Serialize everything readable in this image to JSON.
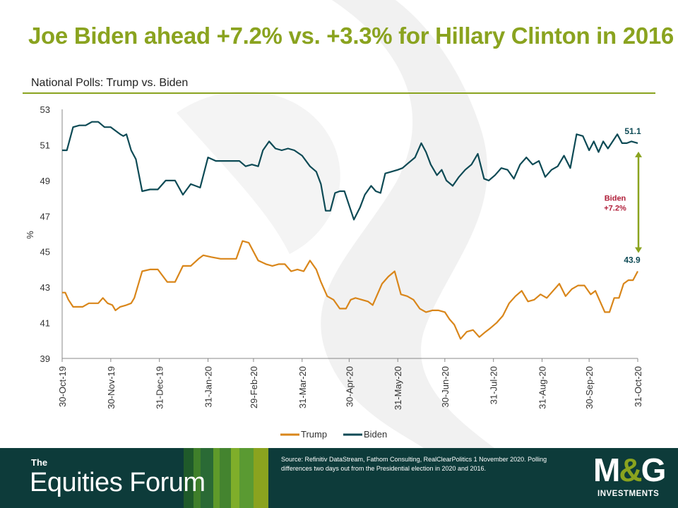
{
  "title": "Joe Biden ahead +7.2% vs. +3.3% for Hillary Clinton in 2016",
  "subtitle": "National Polls: Trump vs. Biden",
  "footer": {
    "brand_small": "The",
    "brand_big": "Equities Forum",
    "source": "Source: Refinitiv DataStream, Fathom Consulting, RealClearPolitics 1 November 2020. Polling differences two days out from the Presidential election in 2020 and 2016.",
    "logo_main_left": "M",
    "logo_amp": "&",
    "logo_main_right": "G",
    "logo_sub": "INVESTMENTS",
    "stripe_colors": [
      "#1f5a2a",
      "#3f7f2a",
      "#2a6a35",
      "#5f9a2a",
      "#44842f",
      "#7fae2a",
      "#5a9a32",
      "#8aa31f"
    ]
  },
  "colors": {
    "title": "#8aa31f",
    "biden": "#0d4a55",
    "trump": "#d9861a",
    "arrow": "#8aa31f",
    "annotation": "#b01f3a"
  },
  "chart_data": {
    "type": "line",
    "ylabel": "%",
    "ylim": [
      39,
      53
    ],
    "yticks": [
      "39",
      "41",
      "43",
      "45",
      "47",
      "49",
      "51",
      "53"
    ],
    "xlim": [
      "2019-10-30",
      "2020-10-31"
    ],
    "xticks": [
      "30-Oct-19",
      "30-Nov-19",
      "31-Dec-19",
      "31-Jan-20",
      "29-Feb-20",
      "31-Mar-20",
      "30-Apr-20",
      "31-May-20",
      "30-Jun-20",
      "31-Jul-20",
      "31-Aug-20",
      "30-Sep-20",
      "31-Oct-20"
    ],
    "grid": false,
    "legend": "bottom",
    "series": [
      {
        "name": "Trump",
        "dates": [
          "2019-10-30",
          "2019-11-01",
          "2019-11-03",
          "2019-11-06",
          "2019-11-09",
          "2019-11-12",
          "2019-11-16",
          "2019-11-19",
          "2019-11-22",
          "2019-11-25",
          "2019-11-28",
          "2019-12-01",
          "2019-12-03",
          "2019-12-06",
          "2019-12-10",
          "2019-12-13",
          "2019-12-15",
          "2019-12-20",
          "2019-12-25",
          "2019-12-30",
          "2020-01-05",
          "2020-01-10",
          "2020-01-15",
          "2020-01-20",
          "2020-01-25",
          "2020-01-28",
          "2020-02-02",
          "2020-02-08",
          "2020-02-12",
          "2020-02-18",
          "2020-02-22",
          "2020-02-26",
          "2020-03-03",
          "2020-03-08",
          "2020-03-12",
          "2020-03-16",
          "2020-03-20",
          "2020-03-24",
          "2020-03-28",
          "2020-04-01",
          "2020-04-05",
          "2020-04-09",
          "2020-04-12",
          "2020-04-16",
          "2020-04-20",
          "2020-04-24",
          "2020-04-28",
          "2020-05-01",
          "2020-05-04",
          "2020-05-08",
          "2020-05-12",
          "2020-05-15",
          "2020-05-18",
          "2020-05-21",
          "2020-05-25",
          "2020-05-29",
          "2020-06-02",
          "2020-06-06",
          "2020-06-10",
          "2020-06-14",
          "2020-06-18",
          "2020-06-22",
          "2020-06-26",
          "2020-06-30",
          "2020-07-03",
          "2020-07-06",
          "2020-07-10",
          "2020-07-14",
          "2020-07-18",
          "2020-07-22",
          "2020-07-26",
          "2020-07-29",
          "2020-08-02",
          "2020-08-06",
          "2020-08-10",
          "2020-08-14",
          "2020-08-18",
          "2020-08-22",
          "2020-08-26",
          "2020-08-30",
          "2020-09-03",
          "2020-09-07",
          "2020-09-11",
          "2020-09-15",
          "2020-09-19",
          "2020-09-23",
          "2020-09-27",
          "2020-10-01",
          "2020-10-04",
          "2020-10-07",
          "2020-10-10",
          "2020-10-13",
          "2020-10-16",
          "2020-10-19",
          "2020-10-22",
          "2020-10-25",
          "2020-10-28",
          "2020-10-31"
        ],
        "values": [
          42.7,
          42.7,
          42.3,
          41.9,
          41.9,
          41.9,
          42.1,
          42.1,
          42.1,
          42.4,
          42.1,
          42.0,
          41.7,
          41.9,
          42.0,
          42.1,
          42.4,
          43.9,
          44.0,
          44.0,
          43.3,
          43.3,
          44.2,
          44.2,
          44.6,
          44.8,
          44.7,
          44.6,
          44.6,
          44.6,
          45.6,
          45.5,
          44.5,
          44.3,
          44.2,
          44.3,
          44.3,
          43.9,
          44.0,
          43.9,
          44.5,
          44.0,
          43.3,
          42.5,
          42.3,
          41.8,
          41.8,
          42.3,
          42.4,
          42.3,
          42.2,
          42.0,
          42.6,
          43.2,
          43.6,
          43.9,
          42.6,
          42.5,
          42.3,
          41.8,
          41.6,
          41.7,
          41.7,
          41.6,
          41.2,
          40.9,
          40.1,
          40.5,
          40.6,
          40.2,
          40.5,
          40.7,
          41.0,
          41.4,
          42.1,
          42.5,
          42.8,
          42.2,
          42.3,
          42.6,
          42.4,
          42.8,
          43.2,
          42.5,
          42.9,
          43.1,
          43.1,
          42.6,
          42.8,
          42.2,
          41.6,
          41.6,
          42.4,
          42.4,
          43.2,
          43.4,
          43.4,
          43.9
        ]
      },
      {
        "name": "Biden",
        "dates": [
          "2019-10-30",
          "2019-11-02",
          "2019-11-06",
          "2019-11-10",
          "2019-11-14",
          "2019-11-18",
          "2019-11-22",
          "2019-11-26",
          "2019-11-30",
          "2019-12-03",
          "2019-12-06",
          "2019-12-08",
          "2019-12-10",
          "2019-12-13",
          "2019-12-16",
          "2019-12-20",
          "2019-12-25",
          "2019-12-30",
          "2020-01-04",
          "2020-01-10",
          "2020-01-15",
          "2020-01-20",
          "2020-01-26",
          "2020-01-31",
          "2020-02-05",
          "2020-02-10",
          "2020-02-15",
          "2020-02-20",
          "2020-02-24",
          "2020-02-28",
          "2020-03-03",
          "2020-03-06",
          "2020-03-10",
          "2020-03-14",
          "2020-03-18",
          "2020-03-22",
          "2020-03-26",
          "2020-03-31",
          "2020-04-05",
          "2020-04-09",
          "2020-04-12",
          "2020-04-15",
          "2020-04-18",
          "2020-04-21",
          "2020-04-24",
          "2020-04-27",
          "2020-04-30",
          "2020-05-03",
          "2020-05-07",
          "2020-05-10",
          "2020-05-14",
          "2020-05-17",
          "2020-05-20",
          "2020-05-23",
          "2020-05-27",
          "2020-05-31",
          "2020-06-03",
          "2020-06-07",
          "2020-06-11",
          "2020-06-15",
          "2020-06-18",
          "2020-06-21",
          "2020-06-25",
          "2020-06-28",
          "2020-07-01",
          "2020-07-05",
          "2020-07-09",
          "2020-07-13",
          "2020-07-17",
          "2020-07-21",
          "2020-07-25",
          "2020-07-28",
          "2020-08-01",
          "2020-08-05",
          "2020-08-09",
          "2020-08-13",
          "2020-08-17",
          "2020-08-21",
          "2020-08-25",
          "2020-08-29",
          "2020-09-02",
          "2020-09-06",
          "2020-09-10",
          "2020-09-14",
          "2020-09-18",
          "2020-09-22",
          "2020-09-26",
          "2020-09-30",
          "2020-10-03",
          "2020-10-06",
          "2020-10-09",
          "2020-10-12",
          "2020-10-15",
          "2020-10-18",
          "2020-10-21",
          "2020-10-24",
          "2020-10-27",
          "2020-10-31"
        ],
        "values": [
          50.7,
          50.7,
          52.0,
          52.1,
          52.1,
          52.3,
          52.3,
          52.0,
          52.0,
          51.8,
          51.6,
          51.5,
          51.6,
          50.7,
          50.2,
          48.4,
          48.5,
          48.5,
          49.0,
          49.0,
          48.2,
          48.8,
          48.6,
          50.3,
          50.1,
          50.1,
          50.1,
          50.1,
          49.8,
          49.9,
          49.8,
          50.7,
          51.2,
          50.8,
          50.7,
          50.8,
          50.7,
          50.4,
          49.8,
          49.5,
          48.8,
          47.3,
          47.3,
          48.3,
          48.4,
          48.4,
          47.6,
          46.8,
          47.5,
          48.2,
          48.7,
          48.4,
          48.3,
          49.4,
          49.5,
          49.6,
          49.7,
          50.0,
          50.3,
          51.1,
          50.6,
          49.9,
          49.3,
          49.6,
          49.0,
          48.7,
          49.2,
          49.6,
          49.9,
          50.5,
          49.1,
          49.0,
          49.3,
          49.7,
          49.6,
          49.1,
          49.9,
          50.3,
          49.9,
          50.1,
          49.2,
          49.6,
          49.8,
          50.4,
          49.7,
          51.6,
          51.5,
          50.7,
          51.2,
          50.6,
          51.2,
          50.8,
          51.2,
          51.6,
          51.1,
          51.1,
          51.2,
          51.1
        ]
      }
    ],
    "annotations": {
      "biden_end": "51.1",
      "trump_end": "43.9",
      "gap_line1": "Biden",
      "gap_line2": "+7.2%"
    }
  }
}
